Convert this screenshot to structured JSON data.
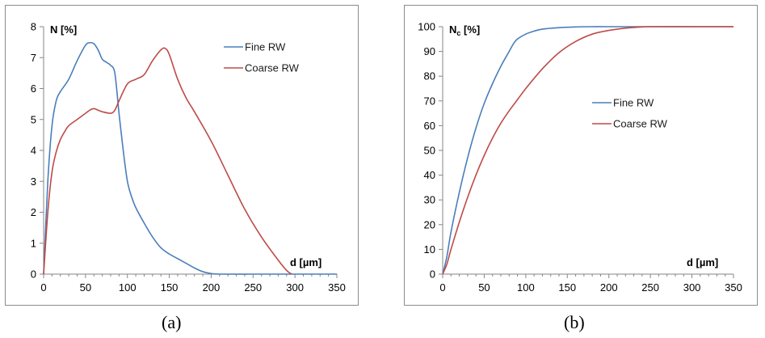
{
  "figure": {
    "caption_a": "(a)",
    "caption_b": "(b)"
  },
  "colors": {
    "fine": "#4a7ebb",
    "coarse": "#be4b48",
    "axis": "#868686"
  },
  "chart_data": [
    {
      "type": "line",
      "panel": "a",
      "ylabel": "N [%]",
      "xlabel": "d [µm]",
      "xlim": [
        0,
        350
      ],
      "ylim": [
        0,
        8
      ],
      "xticks": [
        0,
        50,
        100,
        150,
        200,
        250,
        300,
        350
      ],
      "yticks": [
        0,
        1,
        2,
        3,
        4,
        5,
        6,
        7,
        8
      ],
      "grid": false,
      "legend_position": "top-right",
      "series": [
        {
          "name": "Fine RW",
          "x": [
            0,
            5,
            10,
            15,
            20,
            30,
            40,
            50,
            55,
            60,
            65,
            70,
            75,
            80,
            85,
            90,
            95,
            100,
            105,
            110,
            120,
            130,
            140,
            150,
            160,
            170,
            180,
            190,
            200,
            210,
            250,
            300,
            350
          ],
          "y": [
            0,
            3.0,
            4.8,
            5.6,
            5.9,
            6.3,
            6.9,
            7.4,
            7.48,
            7.45,
            7.25,
            6.95,
            6.85,
            6.75,
            6.5,
            5.2,
            4.0,
            3.0,
            2.5,
            2.15,
            1.65,
            1.2,
            0.85,
            0.65,
            0.5,
            0.35,
            0.2,
            0.08,
            0.02,
            0,
            0,
            0,
            0
          ]
        },
        {
          "name": "Coarse RW",
          "x": [
            0,
            5,
            10,
            15,
            20,
            25,
            30,
            40,
            50,
            55,
            60,
            65,
            70,
            80,
            85,
            90,
            100,
            110,
            120,
            130,
            140,
            145,
            150,
            160,
            170,
            180,
            200,
            220,
            240,
            260,
            280,
            290,
            296
          ],
          "y": [
            0,
            2.0,
            3.3,
            3.95,
            4.35,
            4.6,
            4.8,
            5.0,
            5.2,
            5.3,
            5.35,
            5.3,
            5.25,
            5.2,
            5.3,
            5.6,
            6.15,
            6.3,
            6.45,
            6.9,
            7.25,
            7.3,
            7.1,
            6.3,
            5.7,
            5.25,
            4.3,
            3.2,
            2.1,
            1.2,
            0.45,
            0.12,
            0
          ]
        }
      ]
    },
    {
      "type": "line",
      "panel": "b",
      "ylabel": "Nc [%]",
      "xlabel": "d [µm]",
      "xlim": [
        0,
        350
      ],
      "ylim": [
        0,
        100
      ],
      "xticks": [
        0,
        50,
        100,
        150,
        200,
        250,
        300,
        350
      ],
      "yticks": [
        0,
        10,
        20,
        30,
        40,
        50,
        60,
        70,
        80,
        90,
        100
      ],
      "grid": false,
      "legend_position": "center-right",
      "series": [
        {
          "name": "Fine RW",
          "x": [
            0,
            5,
            10,
            20,
            30,
            40,
            50,
            60,
            70,
            80,
            85,
            90,
            100,
            110,
            120,
            140,
            160,
            180,
            200,
            250,
            300,
            350
          ],
          "y": [
            0,
            7,
            17,
            33,
            47,
            59,
            69,
            77,
            84,
            90,
            93,
            95,
            97,
            98.2,
            99,
            99.6,
            99.9,
            100,
            100,
            100,
            100,
            100
          ]
        },
        {
          "name": "Coarse RW",
          "x": [
            0,
            5,
            10,
            20,
            30,
            40,
            50,
            60,
            70,
            80,
            90,
            100,
            120,
            140,
            160,
            180,
            200,
            220,
            240,
            250,
            300,
            350
          ],
          "y": [
            0,
            4,
            10,
            21,
            31,
            40,
            48,
            55,
            61,
            66,
            70.5,
            75,
            83,
            89.5,
            94,
            97,
            98.5,
            99.4,
            99.9,
            100,
            100,
            100
          ]
        }
      ]
    }
  ]
}
